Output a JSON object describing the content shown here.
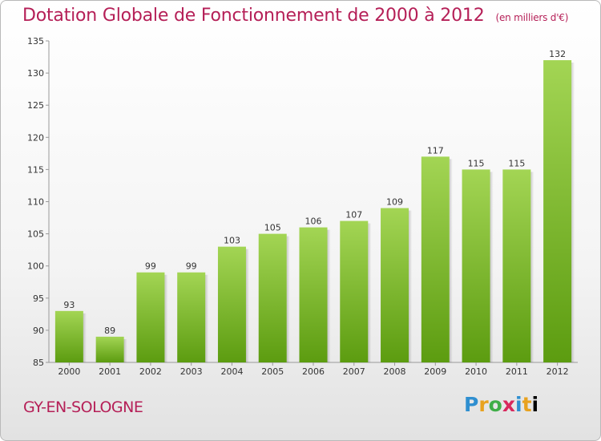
{
  "header": {
    "title": "Dotation Globale de Fonctionnement de 2000 à 2012",
    "subtitle": "(en milliers d'€)"
  },
  "footer": {
    "commune": "GY-EN-SOLOGNE",
    "logo_text": "Proxiti"
  },
  "colors": {
    "title": "#b51f57",
    "bar_light": "#9fd24f",
    "bar_dark": "#5e9e12"
  },
  "chart_data": {
    "type": "bar",
    "categories": [
      "2000",
      "2001",
      "2002",
      "2003",
      "2004",
      "2005",
      "2006",
      "2007",
      "2008",
      "2009",
      "2010",
      "2011",
      "2012"
    ],
    "values": [
      93,
      89,
      99,
      99,
      103,
      105,
      106,
      107,
      109,
      117,
      115,
      115,
      132
    ],
    "title": "Dotation Globale de Fonctionnement de 2000 à 2012",
    "subtitle": "(en milliers d'€)",
    "ylim": [
      85,
      135
    ],
    "yticks": [
      85,
      90,
      95,
      100,
      105,
      110,
      115,
      120,
      125,
      130,
      135
    ],
    "grid": false,
    "legend": "none"
  }
}
